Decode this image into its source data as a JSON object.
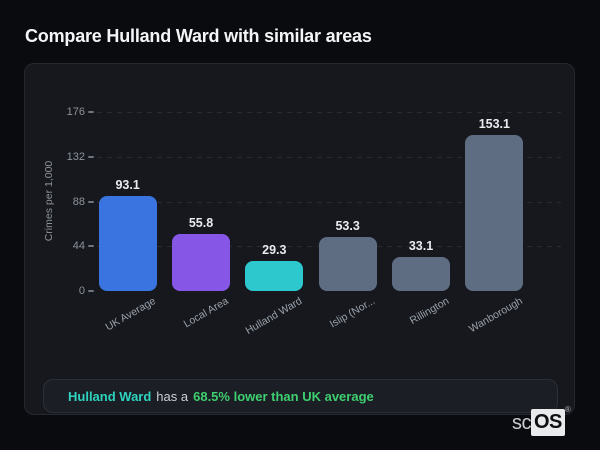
{
  "page": {
    "title": "Compare Hulland Ward with similar areas"
  },
  "chart_data": {
    "type": "bar",
    "categories": [
      "UK Average",
      "Local Area",
      "Hulland Ward",
      "Islip (Nor...",
      "Rillington",
      "Wanborough"
    ],
    "values": [
      93.1,
      55.8,
      29.3,
      53.3,
      33.1,
      153.1
    ],
    "value_labels": [
      "93.1",
      "55.8",
      "29.3",
      "53.3",
      "33.1",
      "153.1"
    ],
    "bar_colors": [
      "#3a74e0",
      "#8657e6",
      "#2cc8ce",
      "#5f6d83",
      "#5f6d83",
      "#5f6d83"
    ],
    "ylabel": "Crimes per 1,000",
    "xlabel": "",
    "yticks": [
      0,
      44,
      88,
      132,
      176
    ],
    "ylim": [
      0,
      176
    ],
    "grid": "horizontal-dashed",
    "legend": "none",
    "highlighted_category": "Hulland Ward"
  },
  "note": {
    "area": "Hulland Ward",
    "middle": "has a",
    "comparison": "68.5% lower than UK average",
    "area_color": "#2dd4bf",
    "comparison_color": "#3ecf70"
  },
  "logo": {
    "prefix": "sc",
    "suffix": "OS",
    "registered": "®"
  }
}
